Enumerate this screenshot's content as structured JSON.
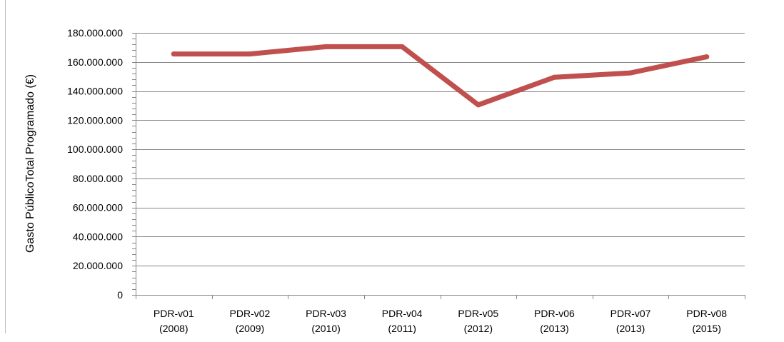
{
  "chart_data": {
    "type": "line",
    "title": "",
    "xlabel": "",
    "ylabel": "Gasto PúblicoTotal  Programado  (€)",
    "categories": [
      [
        "PDR-v01",
        "(2008)"
      ],
      [
        "PDR-v02",
        "(2009)"
      ],
      [
        "PDR-v03",
        "(2010)"
      ],
      [
        "PDR-v04",
        "(2011)"
      ],
      [
        "PDR-v05",
        "(2012)"
      ],
      [
        "PDR-v06",
        "(2013)"
      ],
      [
        "PDR-v07",
        "(2013)"
      ],
      [
        "PDR-v08",
        "(2015)"
      ]
    ],
    "series": [
      {
        "values": [
          165500000,
          165500000,
          170500000,
          170500000,
          130500000,
          149500000,
          152500000,
          163500000
        ],
        "color": "#c0504d"
      }
    ],
    "ylim": [
      0,
      180000000
    ],
    "yticks": [
      0,
      20000000,
      40000000,
      60000000,
      80000000,
      100000000,
      120000000,
      140000000,
      160000000,
      180000000
    ],
    "ytick_labels": [
      "0",
      "20.000.000",
      "40.000.000",
      "60.000.000",
      "80.000.000",
      "100.000.000",
      "120.000.000",
      "140.000.000",
      "160.000.000",
      "180.000.000"
    ],
    "grid": true,
    "grid_color": "#868686",
    "axis_color": "#868686",
    "legend": "none"
  }
}
